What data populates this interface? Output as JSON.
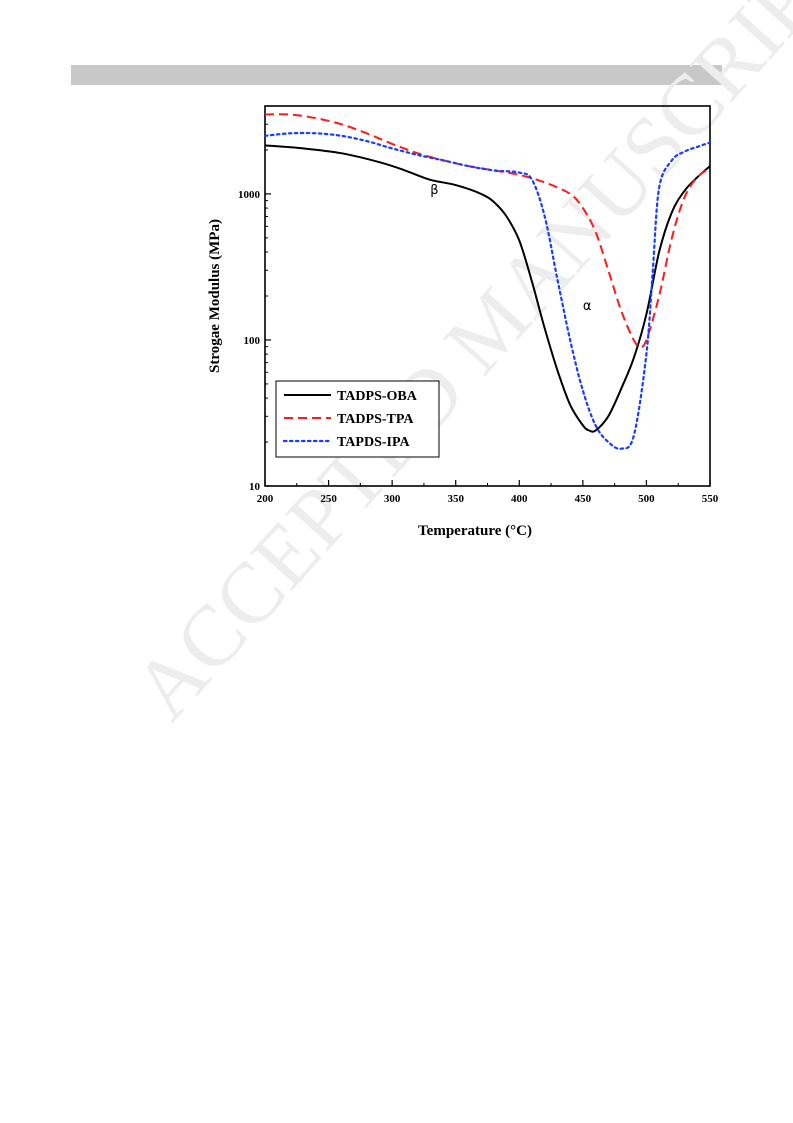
{
  "page": {
    "header_bar_color": "#c8c8c8",
    "watermark_color": "#ededed"
  },
  "watermark": "ACCEPTED MANUSCRIPT",
  "chart_data": {
    "type": "line",
    "title": "",
    "xlabel": "Temperature (°C)",
    "ylabel": "Strogae Modulus (MPa)",
    "xlim": [
      200,
      550
    ],
    "ylim": [
      10,
      4000
    ],
    "yscale": "log",
    "xticks": [
      "200",
      "250",
      "300",
      "350",
      "400",
      "450",
      "500",
      "550"
    ],
    "yticks": [
      "10",
      "100",
      "1000"
    ],
    "legend_position": "bottom-left",
    "grid": false,
    "annotations": [
      {
        "text": "β",
        "x": 330,
        "y": 1000
      },
      {
        "text": "α",
        "x": 450,
        "y": 160
      }
    ],
    "series": [
      {
        "name": "TADPS-OBA",
        "color": "#000000",
        "dash": "solid",
        "x": [
          200,
          230,
          260,
          290,
          310,
          330,
          350,
          370,
          380,
          390,
          400,
          410,
          420,
          430,
          440,
          450,
          455,
          460,
          470,
          480,
          490,
          500,
          510,
          520,
          530,
          540,
          550
        ],
        "y": [
          2150,
          2050,
          1900,
          1650,
          1450,
          1250,
          1150,
          1000,
          880,
          700,
          480,
          250,
          120,
          62,
          36,
          26,
          24,
          24,
          30,
          46,
          75,
          150,
          400,
          750,
          1050,
          1300,
          1550
        ]
      },
      {
        "name": "TADPS-TPA",
        "color": "#ff1a1a",
        "dash": "dashed",
        "x": [
          200,
          220,
          240,
          260,
          280,
          300,
          320,
          340,
          360,
          380,
          400,
          420,
          440,
          450,
          460,
          470,
          480,
          490,
          495,
          500,
          510,
          520,
          530,
          540,
          550
        ],
        "y": [
          3500,
          3500,
          3300,
          3000,
          2600,
          2200,
          1900,
          1700,
          1550,
          1450,
          1350,
          1200,
          1000,
          800,
          550,
          300,
          160,
          100,
          90,
          100,
          200,
          500,
          950,
          1300,
          1500
        ]
      },
      {
        "name": "TAPDS-IPA",
        "color": "#1a3cff",
        "dash": "dotted",
        "x": [
          200,
          220,
          240,
          260,
          280,
          300,
          320,
          340,
          360,
          380,
          400,
          410,
          420,
          430,
          440,
          450,
          460,
          470,
          480,
          490,
          500,
          505,
          510,
          520,
          530,
          540,
          550
        ],
        "y": [
          2500,
          2600,
          2600,
          2500,
          2300,
          2050,
          1850,
          1700,
          1550,
          1450,
          1400,
          1250,
          700,
          260,
          100,
          45,
          26,
          20,
          18,
          22,
          80,
          300,
          1100,
          1700,
          1950,
          2100,
          2250
        ]
      }
    ]
  }
}
